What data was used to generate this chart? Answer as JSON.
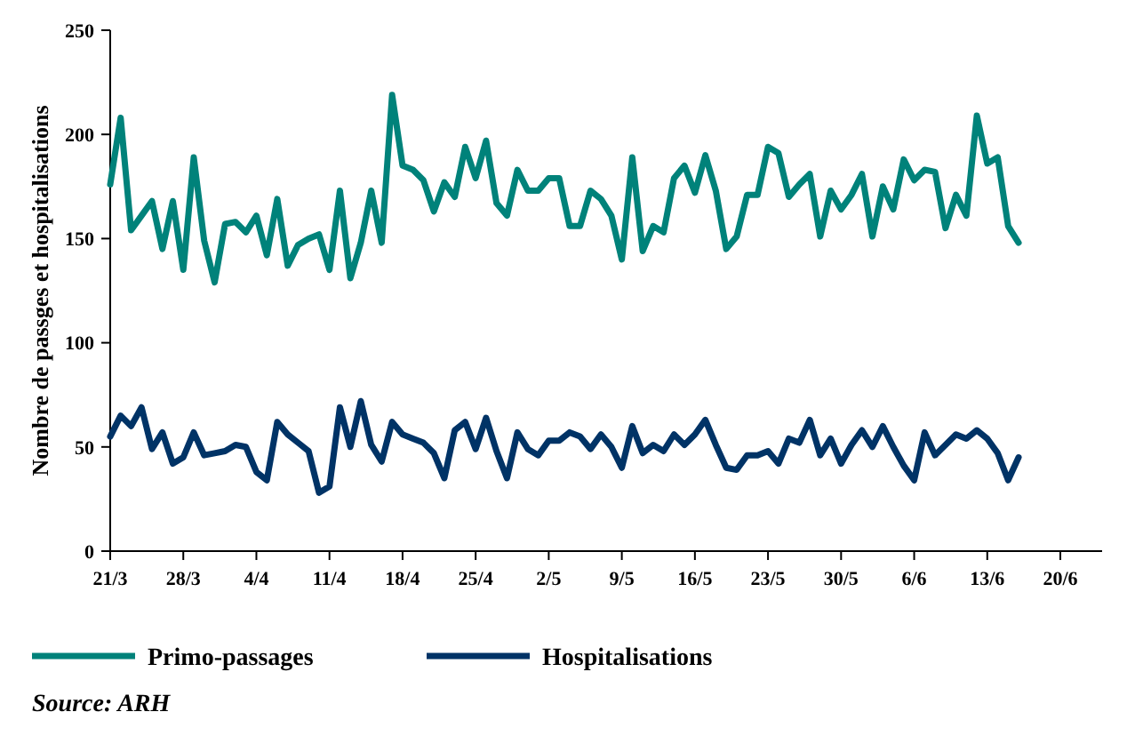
{
  "chart_data": {
    "type": "line",
    "ylabel": "Nombre de passges et hospitalisations",
    "annotations": [
      "Source: ARH"
    ],
    "x": [
      "--03-21",
      "--03-22",
      "--03-23",
      "--03-24",
      "--03-25",
      "--03-26",
      "--03-27",
      "--03-28",
      "--03-29",
      "--03-30",
      "--03-31",
      "--04-01",
      "--04-02",
      "--04-03",
      "--04-04",
      "--04-05",
      "--04-06",
      "--04-07",
      "--04-08",
      "--04-09",
      "--04-10",
      "--04-11",
      "--04-12",
      "--04-13",
      "--04-14",
      "--04-15",
      "--04-16",
      "--04-17",
      "--04-18",
      "--04-19",
      "--04-20",
      "--04-21",
      "--04-22",
      "--04-23",
      "--04-24",
      "--04-25",
      "--04-26",
      "--04-27",
      "--04-28",
      "--04-29",
      "--04-30",
      "--05-01",
      "--05-02",
      "--05-03",
      "--05-04",
      "--05-05",
      "--05-06",
      "--05-07",
      "--05-08",
      "--05-09",
      "--05-10",
      "--05-11",
      "--05-12",
      "--05-13",
      "--05-14",
      "--05-15",
      "--05-16",
      "--05-17",
      "--05-18",
      "--05-19",
      "--05-20",
      "--05-21",
      "--05-22",
      "--05-23",
      "--05-24",
      "--05-25",
      "--05-26",
      "--05-27",
      "--05-28",
      "--05-29",
      "--05-30",
      "--05-31",
      "--06-01",
      "--06-02",
      "--06-03",
      "--06-04",
      "--06-05",
      "--06-06",
      "--06-07",
      "--06-08",
      "--06-09",
      "--06-10",
      "--06-11",
      "--06-12",
      "--06-13",
      "--06-14",
      "--06-15",
      "--06-16"
    ],
    "series": [
      {
        "name": "Primo-passages",
        "color": "#00827a",
        "values": [
          176,
          208,
          154,
          161,
          168,
          145,
          168,
          135,
          189,
          149,
          129,
          157,
          158,
          153,
          161,
          142,
          169,
          137,
          147,
          150,
          152,
          135,
          173,
          131,
          148,
          173,
          148,
          219,
          185,
          183,
          178,
          163,
          177,
          170,
          194,
          179,
          197,
          167,
          161,
          183,
          173,
          173,
          179,
          179,
          156,
          156,
          173,
          169,
          161,
          140,
          189,
          144,
          156,
          153,
          179,
          185,
          172,
          190,
          173,
          145,
          151,
          171,
          171,
          194,
          191,
          170,
          176,
          181,
          151,
          173,
          164,
          171,
          181,
          151,
          175,
          164,
          188,
          178,
          183,
          182,
          155,
          171,
          161,
          209,
          186,
          189,
          156,
          148
        ]
      },
      {
        "name": "Hospitalisations",
        "color": "#003366",
        "values": [
          55,
          65,
          60,
          69,
          49,
          57,
          42,
          45,
          57,
          46,
          47,
          48,
          51,
          50,
          38,
          34,
          62,
          56,
          52,
          48,
          28,
          31,
          69,
          50,
          72,
          51,
          43,
          62,
          56,
          54,
          52,
          47,
          35,
          58,
          62,
          49,
          64,
          48,
          35,
          57,
          49,
          46,
          53,
          53,
          57,
          55,
          49,
          56,
          50,
          40,
          60,
          47,
          51,
          48,
          56,
          51,
          56,
          63,
          51,
          40,
          39,
          46,
          46,
          48,
          42,
          54,
          52,
          63,
          46,
          54,
          42,
          51,
          58,
          50,
          60,
          50,
          41,
          34,
          57,
          46,
          51,
          56,
          54,
          58,
          54,
          47,
          34,
          45
        ]
      }
    ],
    "xlim": [
      "--03-21",
      "--06-24"
    ],
    "xticks": [
      {
        "value": "--03-21",
        "label": "21/3"
      },
      {
        "value": "--03-28",
        "label": "28/3"
      },
      {
        "value": "--04-04",
        "label": "4/4"
      },
      {
        "value": "--04-11",
        "label": "11/4"
      },
      {
        "value": "--04-18",
        "label": "18/4"
      },
      {
        "value": "--04-25",
        "label": "25/4"
      },
      {
        "value": "--05-02",
        "label": "2/5"
      },
      {
        "value": "--05-09",
        "label": "9/5"
      },
      {
        "value": "--05-16",
        "label": "16/5"
      },
      {
        "value": "--05-23",
        "label": "23/5"
      },
      {
        "value": "--05-30",
        "label": "30/5"
      },
      {
        "value": "--06-06",
        "label": "6/6"
      },
      {
        "value": "--06-13",
        "label": "13/6"
      },
      {
        "value": "--06-20",
        "label": "20/6"
      }
    ],
    "ylim": [
      0,
      250
    ],
    "yticks": [
      0,
      50,
      100,
      150,
      200,
      250
    ],
    "grid": false,
    "legend": "bottom",
    "marker": "none",
    "line_style": "solid"
  }
}
